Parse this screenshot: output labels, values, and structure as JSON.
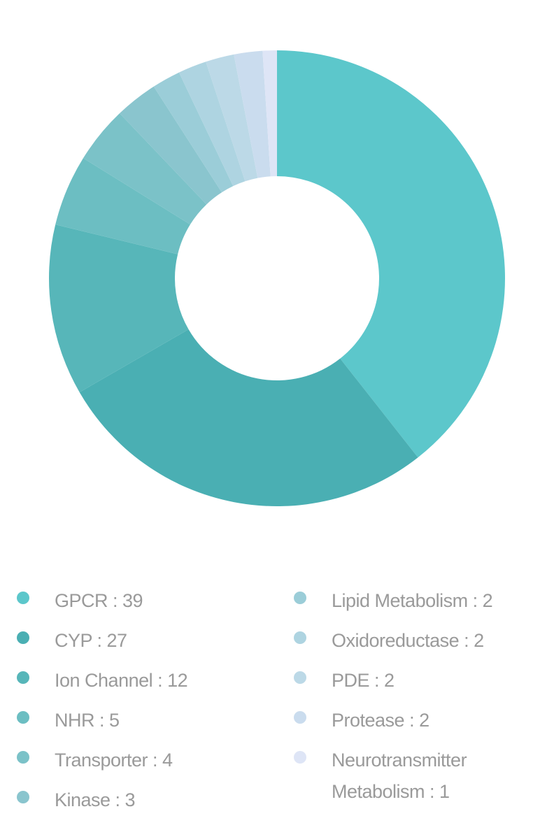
{
  "chart_data": {
    "type": "pie",
    "variant": "donut",
    "title": "",
    "slices": [
      {
        "label": "GPCR",
        "value": 39,
        "color": "#5cc7cb"
      },
      {
        "label": "CYP",
        "value": 27,
        "color": "#4aafb3"
      },
      {
        "label": "Ion Channel",
        "value": 12,
        "color": "#57b6b9"
      },
      {
        "label": "NHR",
        "value": 5,
        "color": "#6cbec2"
      },
      {
        "label": "Transporter",
        "value": 4,
        "color": "#7bc2c8"
      },
      {
        "label": "Kinase",
        "value": 3,
        "color": "#8ac5ce"
      },
      {
        "label": "Lipid Metabolism",
        "value": 2,
        "color": "#9bcdd8"
      },
      {
        "label": "Oxidoreductase",
        "value": 2,
        "color": "#aed4e1"
      },
      {
        "label": "PDE",
        "value": 2,
        "color": "#bcd9e7"
      },
      {
        "label": "Protease",
        "value": 2,
        "color": "#cadcee"
      },
      {
        "label": "Neurotransmitter Metabolism",
        "value": 1,
        "color": "#dee5f6"
      }
    ],
    "legend_placement": "bottom",
    "legend_separator": " : "
  }
}
